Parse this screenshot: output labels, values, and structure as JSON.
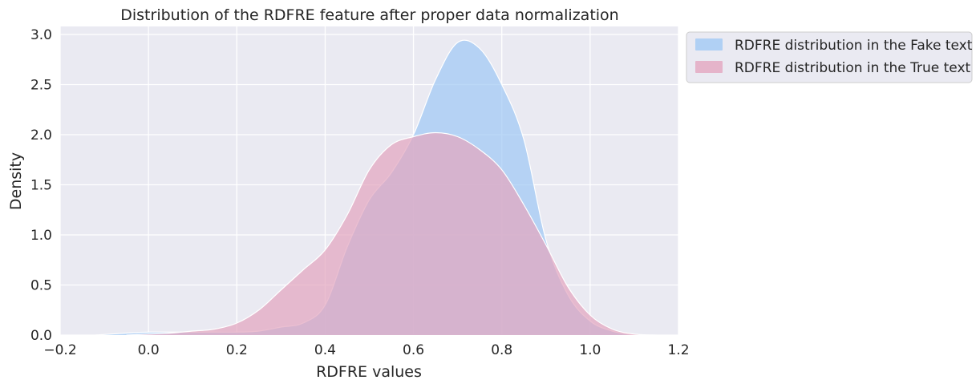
{
  "chart_data": {
    "type": "area",
    "title": "Distribution of the RDFRE feature after proper data normalization",
    "xlabel": "RDFRE values",
    "ylabel": "Density",
    "xlim": [
      -0.2,
      1.2
    ],
    "ylim": [
      0,
      3.0
    ],
    "x_ticks": [
      "−0.2",
      "0.0",
      "0.2",
      "0.4",
      "0.6",
      "0.8",
      "1.0",
      "1.2"
    ],
    "y_ticks": [
      "0.0",
      "0.5",
      "1.0",
      "1.5",
      "2.0",
      "2.5",
      "3.0"
    ],
    "grid": true,
    "legend_position": "outside-top-right",
    "series": [
      {
        "name": "RDFRE distribution in the Fake text",
        "color": "#a1c9f4",
        "x": [
          -0.12,
          -0.05,
          0.0,
          0.05,
          0.1,
          0.15,
          0.2,
          0.25,
          0.3,
          0.35,
          0.4,
          0.45,
          0.5,
          0.55,
          0.6,
          0.65,
          0.7,
          0.75,
          0.8,
          0.85,
          0.9,
          0.95,
          1.0,
          1.05,
          1.1
        ],
        "values": [
          0.0,
          0.02,
          0.03,
          0.03,
          0.03,
          0.03,
          0.03,
          0.04,
          0.08,
          0.12,
          0.3,
          0.88,
          1.35,
          1.62,
          2.0,
          2.55,
          2.92,
          2.86,
          2.5,
          1.95,
          0.95,
          0.4,
          0.14,
          0.04,
          0.0
        ]
      },
      {
        "name": "RDFRE distribution in the True text",
        "color": "#e3a6bf",
        "x": [
          -0.05,
          0.0,
          0.05,
          0.1,
          0.15,
          0.2,
          0.25,
          0.3,
          0.35,
          0.4,
          0.45,
          0.5,
          0.55,
          0.6,
          0.65,
          0.7,
          0.75,
          0.8,
          0.85,
          0.9,
          0.95,
          1.0,
          1.05,
          1.1,
          1.15
        ],
        "values": [
          0.0,
          0.01,
          0.02,
          0.04,
          0.06,
          0.12,
          0.25,
          0.45,
          0.65,
          0.85,
          1.2,
          1.65,
          1.9,
          1.98,
          2.02,
          1.98,
          1.85,
          1.65,
          1.3,
          0.9,
          0.48,
          0.2,
          0.06,
          0.01,
          0.0
        ]
      }
    ]
  }
}
